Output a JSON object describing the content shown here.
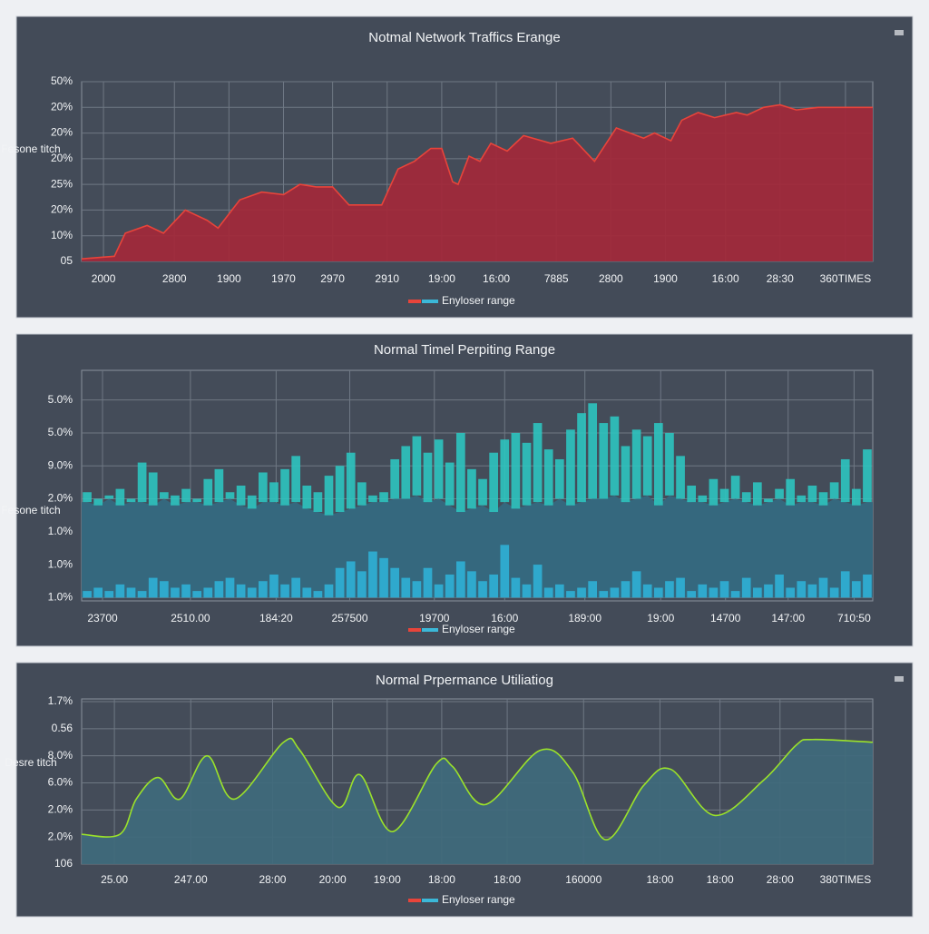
{
  "chart_data": [
    {
      "type": "area",
      "title": "Notmal Network Traffics Erange",
      "ylabel": "Fesone titch",
      "x": [
        0,
        0.6,
        0.8,
        1.2,
        1.5,
        1.9,
        2.3,
        2.5,
        2.9,
        3.3,
        3.7,
        4.0,
        4.3,
        4.6,
        4.9,
        5.2,
        5.5,
        5.8,
        6.1,
        6.4,
        6.6,
        6.8,
        6.9,
        7.1,
        7.3,
        7.5,
        7.8,
        8.1,
        8.6,
        9.0,
        9.4,
        9.8,
        10.3,
        10.5,
        10.8,
        11.0,
        11.3,
        11.6,
        12.0,
        12.2,
        12.5,
        12.8,
        13.1,
        13.5,
        14.5
      ],
      "series": [
        {
          "name": "Enyloser range",
          "color": "#e8443a",
          "fill": "#a3283a",
          "values": [
            0.1,
            0.2,
            1.1,
            1.4,
            1.1,
            2.0,
            1.6,
            1.3,
            2.4,
            2.7,
            2.6,
            3.0,
            2.9,
            2.9,
            2.2,
            2.2,
            2.2,
            3.6,
            3.9,
            4.4,
            4.4,
            3.1,
            3.0,
            4.1,
            3.9,
            4.6,
            4.3,
            4.9,
            4.6,
            4.8,
            3.9,
            5.2,
            4.8,
            5.0,
            4.7,
            5.5,
            5.8,
            5.6,
            5.8,
            5.7,
            6.0,
            6.1,
            5.9,
            6.0,
            6.0
          ]
        }
      ],
      "legend_colors": [
        "#e8443a",
        "#3bb8d8"
      ],
      "xlim": [
        0,
        14.5
      ],
      "xticks": [
        {
          "value": 0.4,
          "label": "2000"
        },
        {
          "value": 1.7,
          "label": "2800"
        },
        {
          "value": 2.7,
          "label": "1900"
        },
        {
          "value": 3.7,
          "label": "1970"
        },
        {
          "value": 4.6,
          "label": "2970"
        },
        {
          "value": 5.6,
          "label": "2910"
        },
        {
          "value": 6.6,
          "label": "19:00"
        },
        {
          "value": 7.6,
          "label": "16:00"
        },
        {
          "value": 8.7,
          "label": "7885"
        },
        {
          "value": 9.7,
          "label": "2800"
        },
        {
          "value": 10.7,
          "label": "1900"
        },
        {
          "value": 11.8,
          "label": "16:00"
        },
        {
          "value": 12.8,
          "label": "28:30"
        },
        {
          "value": 14.0,
          "label": "360TIMES"
        }
      ],
      "ylim": [
        0,
        7
      ],
      "yticks": [
        {
          "value": 0,
          "label": "05"
        },
        {
          "value": 1,
          "label": "10%"
        },
        {
          "value": 2,
          "label": "20%"
        },
        {
          "value": 3,
          "label": "25%"
        },
        {
          "value": 4,
          "label": "20%"
        },
        {
          "value": 5,
          "label": "20%"
        },
        {
          "value": 6,
          "label": "20%"
        },
        {
          "value": 7,
          "label": "50%"
        }
      ],
      "grid": true
    },
    {
      "type": "bar",
      "title": "Normal Timel Perpiting Range",
      "ylabel": "Fesone titch",
      "series": [
        {
          "name": "Enyloser range",
          "color": "#2ec4bf",
          "fill": "#35687e",
          "values": [
            3.2,
            3.0,
            3.1,
            3.3,
            3.0,
            4.1,
            3.8,
            3.2,
            3.1,
            3.3,
            3.0,
            3.6,
            3.9,
            3.2,
            3.4,
            3.1,
            3.8,
            3.5,
            3.9,
            4.3,
            3.4,
            3.2,
            3.7,
            4.0,
            4.4,
            3.5,
            3.1,
            3.2,
            4.2,
            4.6,
            4.9,
            4.4,
            4.8,
            4.1,
            5.0,
            3.9,
            3.6,
            4.4,
            4.8,
            5.0,
            4.7,
            5.3,
            4.5,
            4.2,
            5.1,
            5.6,
            5.9,
            5.3,
            5.5,
            4.6,
            5.1,
            4.9,
            5.3,
            5.0,
            4.3,
            3.4,
            3.1,
            3.6,
            3.3,
            3.7,
            3.2,
            3.5,
            3.0,
            3.3,
            3.6,
            3.1,
            3.4,
            3.2,
            3.5,
            4.2,
            3.3,
            4.5
          ],
          "low": [
            2.9,
            2.8,
            3.0,
            2.8,
            2.9,
            2.9,
            2.8,
            3.0,
            2.8,
            2.9,
            2.9,
            2.8,
            2.9,
            3.0,
            2.8,
            2.7,
            2.9,
            2.9,
            2.8,
            2.9,
            2.7,
            2.6,
            2.5,
            2.6,
            2.7,
            2.8,
            2.9,
            2.9,
            3.0,
            3.0,
            3.1,
            2.9,
            3.0,
            2.8,
            2.6,
            2.7,
            2.8,
            2.6,
            2.9,
            2.7,
            2.8,
            2.9,
            2.8,
            3.0,
            2.8,
            2.9,
            3.0,
            3.0,
            3.1,
            2.9,
            3.0,
            3.1,
            2.8,
            3.1,
            3.0,
            2.9,
            2.9,
            2.8,
            2.9,
            3.0,
            2.9,
            2.8,
            2.9,
            3.0,
            2.8,
            2.9,
            2.9,
            2.8,
            3.0,
            2.9,
            2.8,
            2.9
          ]
        },
        {
          "color": "#2fb0d6",
          "values": [
            0.2,
            0.3,
            0.2,
            0.4,
            0.3,
            0.2,
            0.6,
            0.5,
            0.3,
            0.4,
            0.2,
            0.3,
            0.5,
            0.6,
            0.4,
            0.3,
            0.5,
            0.7,
            0.4,
            0.6,
            0.3,
            0.2,
            0.4,
            0.9,
            1.1,
            0.8,
            1.4,
            1.2,
            0.9,
            0.6,
            0.5,
            0.9,
            0.4,
            0.7,
            1.1,
            0.8,
            0.5,
            0.7,
            1.6,
            0.6,
            0.4,
            1.0,
            0.3,
            0.4,
            0.2,
            0.3,
            0.5,
            0.2,
            0.3,
            0.5,
            0.8,
            0.4,
            0.3,
            0.5,
            0.6,
            0.2,
            0.4,
            0.3,
            0.5,
            0.2,
            0.6,
            0.3,
            0.4,
            0.7,
            0.3,
            0.5,
            0.4,
            0.6,
            0.3,
            0.8,
            0.5,
            0.7
          ]
        }
      ],
      "legend_colors": [
        "#e8443a",
        "#3bb8d8"
      ],
      "xlim": [
        0,
        72
      ],
      "xticks": [
        {
          "value": 1.9,
          "label": "23700"
        },
        {
          "value": 9.9,
          "label": "2510.00"
        },
        {
          "value": 17.7,
          "label": "184:20"
        },
        {
          "value": 24.4,
          "label": "257500"
        },
        {
          "value": 32.1,
          "label": "19700"
        },
        {
          "value": 38.5,
          "label": "16:00"
        },
        {
          "value": 45.8,
          "label": "189:00"
        },
        {
          "value": 52.7,
          "label": "19:00"
        },
        {
          "value": 58.6,
          "label": "14700"
        },
        {
          "value": 64.3,
          "label": "147:00"
        },
        {
          "value": 70.3,
          "label": "710:50"
        }
      ],
      "ylim": [
        -0.1,
        6.9
      ],
      "yticks": [
        {
          "value": 0,
          "label": "1.0%"
        },
        {
          "value": 1,
          "label": "1.0%"
        },
        {
          "value": 2,
          "label": "1.0%"
        },
        {
          "value": 3,
          "label": "2.0%"
        },
        {
          "value": 4,
          "label": "9.0%"
        },
        {
          "value": 5,
          "label": "5.0%"
        },
        {
          "value": 6,
          "label": "5.0%"
        }
      ],
      "grid": true
    },
    {
      "type": "area",
      "title": "Normal Prpermance Utiliatiog",
      "ylabel": "Desre titch",
      "smooth": true,
      "x": [
        0,
        0.7,
        1.0,
        1.4,
        1.8,
        2.3,
        2.8,
        3.7,
        4.0,
        4.7,
        5.1,
        5.7,
        6.5,
        6.8,
        7.4,
        8.4,
        9.0,
        9.6,
        10.3,
        10.8,
        11.6,
        12.5,
        13.1,
        13.4,
        14.5
      ],
      "series": [
        {
          "name": "Enyloser range",
          "color": "#9be22a",
          "fill": "#3f6a7c",
          "values": [
            1.1,
            1.1,
            2.4,
            3.2,
            2.4,
            4.0,
            2.4,
            4.5,
            4.2,
            2.1,
            3.3,
            1.2,
            3.7,
            3.6,
            2.2,
            4.2,
            3.4,
            0.9,
            2.9,
            3.5,
            1.8,
            3.1,
            4.4,
            4.6,
            4.5
          ]
        }
      ],
      "legend_colors": [
        "#e8443a",
        "#3bb8d8"
      ],
      "xlim": [
        0,
        14.5
      ],
      "xticks": [
        {
          "value": 0.6,
          "label": "25.00"
        },
        {
          "value": 2.0,
          "label": "247.00"
        },
        {
          "value": 3.5,
          "label": "28:00"
        },
        {
          "value": 4.6,
          "label": "20:00"
        },
        {
          "value": 5.6,
          "label": "19:00"
        },
        {
          "value": 6.6,
          "label": "18:00"
        },
        {
          "value": 7.8,
          "label": "18:00"
        },
        {
          "value": 9.2,
          "label": "160000"
        },
        {
          "value": 10.6,
          "label": "18:00"
        },
        {
          "value": 11.7,
          "label": "18:00"
        },
        {
          "value": 12.8,
          "label": "28:00"
        },
        {
          "value": 14.0,
          "label": "380TIMES"
        }
      ],
      "ylim": [
        0,
        6.1
      ],
      "yticks": [
        {
          "value": 0,
          "label": "106"
        },
        {
          "value": 1,
          "label": "2.0%"
        },
        {
          "value": 2,
          "label": "2.0%"
        },
        {
          "value": 3,
          "label": "6.0%"
        },
        {
          "value": 4,
          "label": "8.0%"
        },
        {
          "value": 5,
          "label": "0.56"
        },
        {
          "value": 6,
          "label": "1.7%"
        }
      ],
      "grid": true
    }
  ]
}
